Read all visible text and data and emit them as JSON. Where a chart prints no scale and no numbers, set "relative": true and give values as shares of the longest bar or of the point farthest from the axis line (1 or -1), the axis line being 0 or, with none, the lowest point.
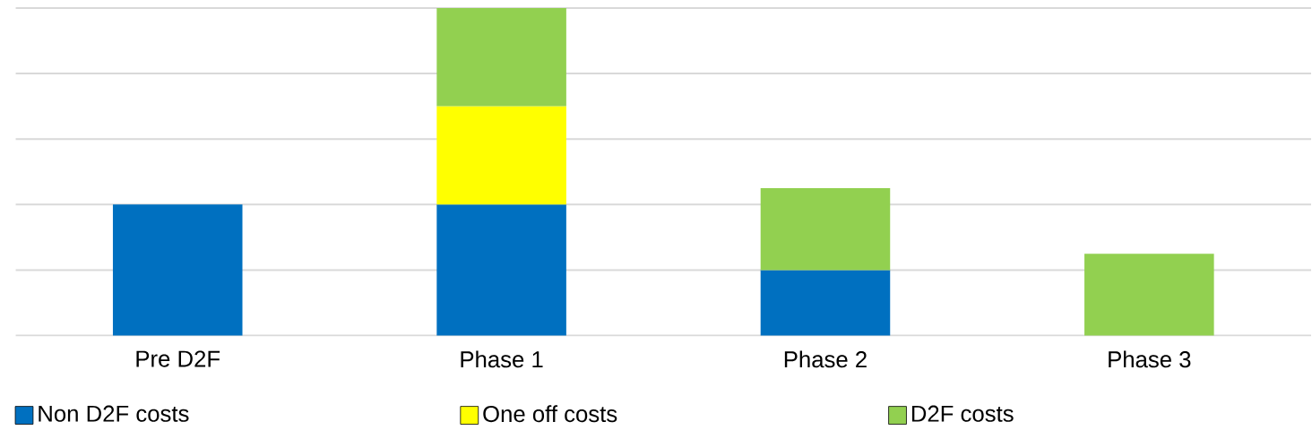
{
  "chart_data": {
    "type": "bar",
    "stacked": true,
    "relative": true,
    "grid": "y",
    "legend": "bottom",
    "categories": [
      "Pre D2F",
      "Phase 1",
      "Phase 2",
      "Phase 3"
    ],
    "series": [
      {
        "name": "Non D2F costs",
        "color": "#0070c0",
        "values": [
          0.4,
          0.4,
          0.2,
          null
        ]
      },
      {
        "name": "One off costs",
        "color": "#ffff00",
        "values": [
          null,
          0.3,
          null,
          null
        ]
      },
      {
        "name": "D2F costs",
        "color": "#92d050",
        "values": [
          null,
          0.3,
          0.25,
          0.25
        ]
      }
    ]
  }
}
